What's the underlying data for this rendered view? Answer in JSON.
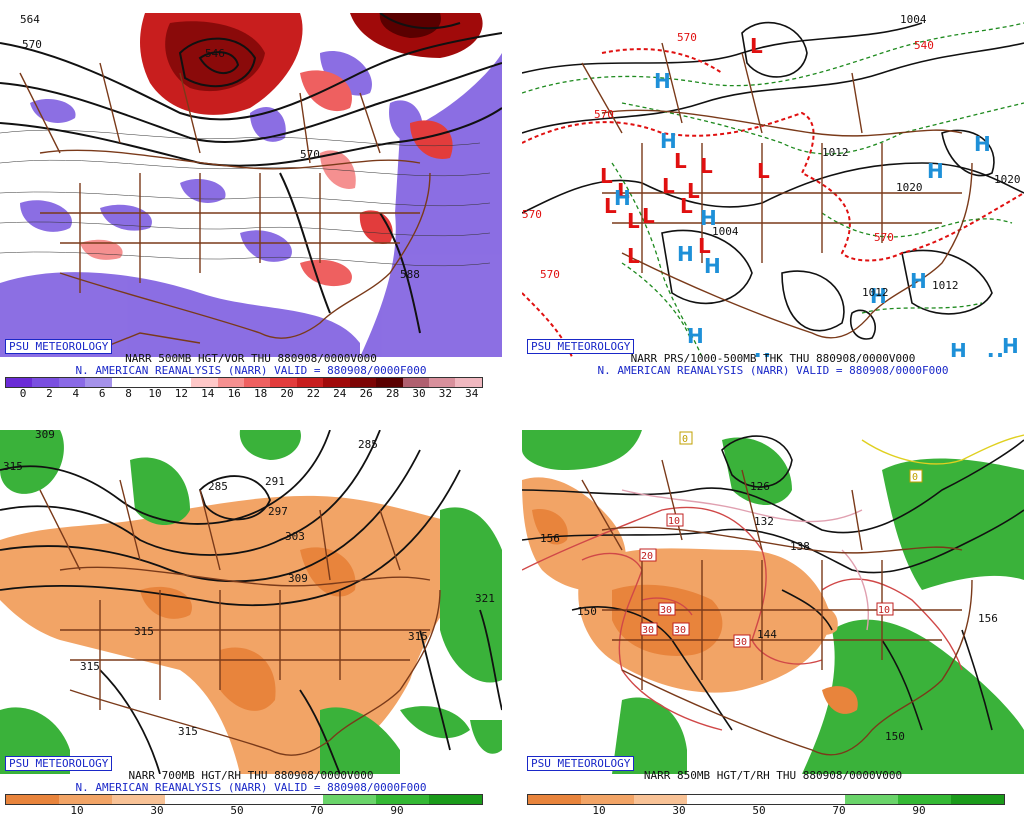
{
  "panels": [
    {
      "id": "p1",
      "psu_label": "PSU METEOROLOGY",
      "title_line1": "NARR 500MB HGT/VOR THU 880908/0000V000",
      "title_line2": "N. AMERICAN REANALYSIS (NARR) VALID = 880908/0000F000",
      "map_labels": [
        "570",
        "546",
        "570",
        "588",
        "564"
      ],
      "colorbar": {
        "ticks": [
          "0",
          "2",
          "4",
          "6",
          "8",
          "10",
          "12",
          "14",
          "16",
          "18",
          "20",
          "22",
          "24",
          "26",
          "28",
          "30",
          "32",
          "34"
        ],
        "colors": [
          "#6a2bd6",
          "#7a4fe0",
          "#8a6ae6",
          "#a592ea",
          "#ffffff",
          "#ffffff",
          "#ffffff",
          "#ffc8c8",
          "#f59090",
          "#ee6060",
          "#e23c3c",
          "#c81e1e",
          "#a00a0a",
          "#7d0505",
          "#5a0000",
          "#b06070",
          "#d8909c",
          "#f0b8c0"
        ]
      }
    },
    {
      "id": "p2",
      "psu_label": "PSU METEOROLOGY",
      "title_line1": "NARR PRS/1000-500MB THK THU 880908/0000V000",
      "title_line2": "N. AMERICAN REANALYSIS (NARR) VALID = 880908/0000F000",
      "map_labels": [
        "1004",
        "1012",
        "1020",
        "1012",
        "1004",
        "1012",
        "1020",
        "570",
        "570",
        "540",
        "570",
        "570",
        "570"
      ],
      "pressure_centers": [
        {
          "type": "L",
          "color": "#e01010"
        },
        {
          "type": "H",
          "color": "#1e90d8"
        }
      ]
    },
    {
      "id": "p3",
      "psu_label": "PSU METEOROLOGY",
      "title_line1": "NARR 700MB HGT/RH THU 880908/0000V000",
      "title_line2": "N. AMERICAN REANALYSIS (NARR) VALID = 880908/0000F000",
      "map_labels": [
        "309",
        "285",
        "309",
        "315",
        "315",
        "315",
        "321",
        "315",
        "315",
        "303",
        "297",
        "291",
        "285"
      ],
      "colorbar": {
        "ticks": [
          "10",
          "30",
          "50",
          "70",
          "90"
        ],
        "colors": [
          "#e8843c",
          "#f2a466",
          "#f8c296",
          "#ffffff",
          "#ffffff",
          "#ffffff",
          "#6ad46a",
          "#34b834",
          "#1a9a1a"
        ]
      }
    },
    {
      "id": "p4",
      "psu_label": "PSU METEOROLOGY",
      "title_line1": "NARR 850MB HGT/T/RH THU 880908/0000V000",
      "title_line2": "",
      "map_labels": [
        "156",
        "150",
        "144",
        "138",
        "132",
        "126",
        "156",
        "150",
        "10",
        "20",
        "30",
        "30",
        "30",
        "30",
        "10",
        "0",
        "0"
      ],
      "colorbar": {
        "ticks": [
          "10",
          "30",
          "50",
          "70",
          "90"
        ],
        "colors": [
          "#e8843c",
          "#f2a466",
          "#f8c296",
          "#ffffff",
          "#ffffff",
          "#ffffff",
          "#6ad46a",
          "#34b834",
          "#1a9a1a"
        ]
      }
    }
  ],
  "colors": {
    "border": "#7a3a1a",
    "height_contour": "#111111",
    "thickness_warm": "#e01010",
    "thickness_cold": "#1e8a1e",
    "psu_blue": "#1a28c8"
  }
}
